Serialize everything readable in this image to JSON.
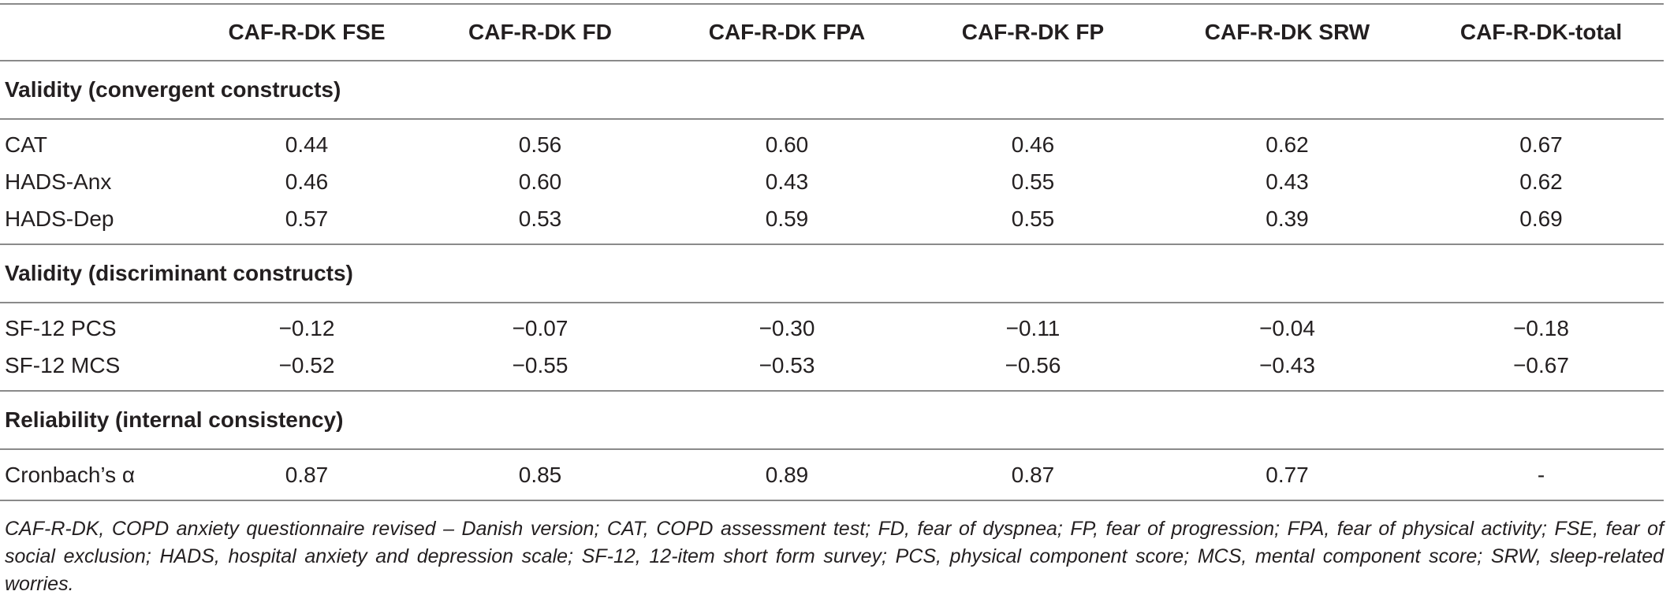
{
  "table": {
    "headers": [
      "",
      "CAF-R-DK FSE",
      "CAF-R-DK FD",
      "CAF-R-DK FPA",
      "CAF-R-DK FP",
      "CAF-R-DK SRW",
      "CAF-R-DK-total"
    ],
    "sections": [
      {
        "title": "Validity (convergent constructs)",
        "rows": [
          {
            "label": "CAT",
            "values": [
              "0.44",
              "0.56",
              "0.60",
              "0.46",
              "0.62",
              "0.67"
            ]
          },
          {
            "label": "HADS-Anx",
            "values": [
              "0.46",
              "0.60",
              "0.43",
              "0.55",
              "0.43",
              "0.62"
            ]
          },
          {
            "label": "HADS-Dep",
            "values": [
              "0.57",
              "0.53",
              "0.59",
              "0.55",
              "0.39",
              "0.69"
            ]
          }
        ]
      },
      {
        "title": "Validity (discriminant constructs)",
        "rows": [
          {
            "label": "SF-12 PCS",
            "values": [
              "−0.12",
              "−0.07",
              "−0.30",
              "−0.11",
              "−0.04",
              "−0.18"
            ]
          },
          {
            "label": "SF-12 MCS",
            "values": [
              "−0.52",
              "−0.55",
              "−0.53",
              "−0.56",
              "−0.43",
              "−0.67"
            ]
          }
        ]
      },
      {
        "title": "Reliability (internal consistency)",
        "rows": [
          {
            "label": "Cronbach’s α",
            "values": [
              "0.87",
              "0.85",
              "0.89",
              "0.87",
              "0.77",
              "-"
            ]
          }
        ]
      }
    ]
  },
  "footnote": "CAF-R-DK, COPD anxiety questionnaire revised – Danish version; CAT, COPD assessment test; FD, fear of dyspnea; FP, fear of progression; FPA, fear of physical activity; FSE, fear of social exclusion; HADS, hospital anxiety and depression scale; SF-12, 12-item short form survey; PCS,  physical component score; MCS,  mental component score; SRW, sleep-related worries."
}
